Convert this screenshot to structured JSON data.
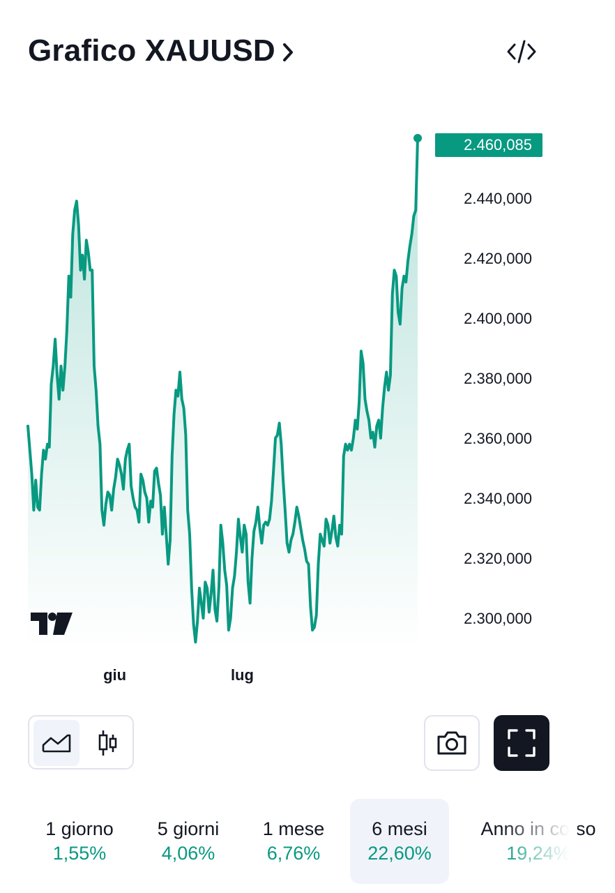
{
  "header": {
    "title": "Grafico XAUUSD"
  },
  "chart_data": {
    "type": "area",
    "symbol": "XAUUSD",
    "xlabel": "",
    "ylabel": "",
    "x_tick_labels": [
      "giu",
      "lug"
    ],
    "y_tick_labels": [
      "2.440,000",
      "2.420,000",
      "2.400,000",
      "2.380,000",
      "2.360,000",
      "2.340,000",
      "2.320,000",
      "2.300,000"
    ],
    "y_ticks": [
      2440,
      2420,
      2400,
      2380,
      2360,
      2340,
      2320,
      2300
    ],
    "last_value": 2460.085,
    "last_value_label": "2.460,085",
    "line_color": "#089981",
    "grid": false,
    "legend": "none",
    "series": [
      {
        "values": [
          2364,
          2356,
          2348,
          2336,
          2346,
          2337,
          2336,
          2348,
          2356,
          2353,
          2358,
          2357,
          2378,
          2384,
          2393,
          2381,
          2373,
          2384,
          2376,
          2384,
          2396,
          2414,
          2407,
          2428,
          2436,
          2439,
          2431,
          2416,
          2421,
          2413,
          2426,
          2422,
          2416,
          2416,
          2384,
          2376,
          2364,
          2358,
          2336,
          2331,
          2338,
          2342,
          2341,
          2336,
          2343,
          2347,
          2353,
          2351,
          2348,
          2343,
          2353,
          2356,
          2358,
          2344,
          2340,
          2337,
          2336,
          2332,
          2348,
          2346,
          2342,
          2340,
          2332,
          2339,
          2337,
          2349,
          2350,
          2345,
          2341,
          2328,
          2337,
          2328,
          2318,
          2326,
          2354,
          2368,
          2376,
          2374,
          2382,
          2373,
          2370,
          2361,
          2336,
          2328,
          2310,
          2298,
          2292,
          2299,
          2310,
          2305,
          2300,
          2312,
          2310,
          2302,
          2308,
          2316,
          2303,
          2299,
          2310,
          2331,
          2325,
          2316,
          2311,
          2296,
          2300,
          2310,
          2314,
          2322,
          2333,
          2327,
          2322,
          2331,
          2328,
          2312,
          2305,
          2320,
          2329,
          2332,
          2337,
          2330,
          2325,
          2331,
          2332,
          2331,
          2333,
          2339,
          2349,
          2360,
          2361,
          2365,
          2358,
          2346,
          2336,
          2325,
          2322,
          2326,
          2328,
          2332,
          2337,
          2334,
          2330,
          2326,
          2323,
          2319,
          2318,
          2304,
          2296,
          2297,
          2301,
          2318,
          2328,
          2326,
          2324,
          2333,
          2331,
          2325,
          2329,
          2334,
          2327,
          2324,
          2331,
          2328,
          2354,
          2358,
          2356,
          2358,
          2356,
          2360,
          2366,
          2363,
          2372,
          2389,
          2385,
          2373,
          2369,
          2366,
          2360,
          2362,
          2357,
          2364,
          2366,
          2360,
          2370,
          2377,
          2382,
          2376,
          2381,
          2408,
          2416,
          2414,
          2402,
          2398,
          2410,
          2414,
          2412,
          2419,
          2424,
          2428,
          2434,
          2436,
          2460
        ]
      }
    ]
  },
  "tools": {
    "embed_icon": "code-icon",
    "area_icon": "area-chart-icon",
    "candle_icon": "candlestick-icon",
    "camera_icon": "camera-icon",
    "fullscreen_icon": "fullscreen-icon"
  },
  "periods": [
    {
      "label": "1 giorno",
      "change": "1,55%"
    },
    {
      "label": "5 giorni",
      "change": "4,06%"
    },
    {
      "label": "1 mese",
      "change": "6,76%"
    },
    {
      "label": "6 mesi",
      "change": "22,60%",
      "active": true
    },
    {
      "label": "Anno in corso",
      "change": "19,24%"
    }
  ]
}
